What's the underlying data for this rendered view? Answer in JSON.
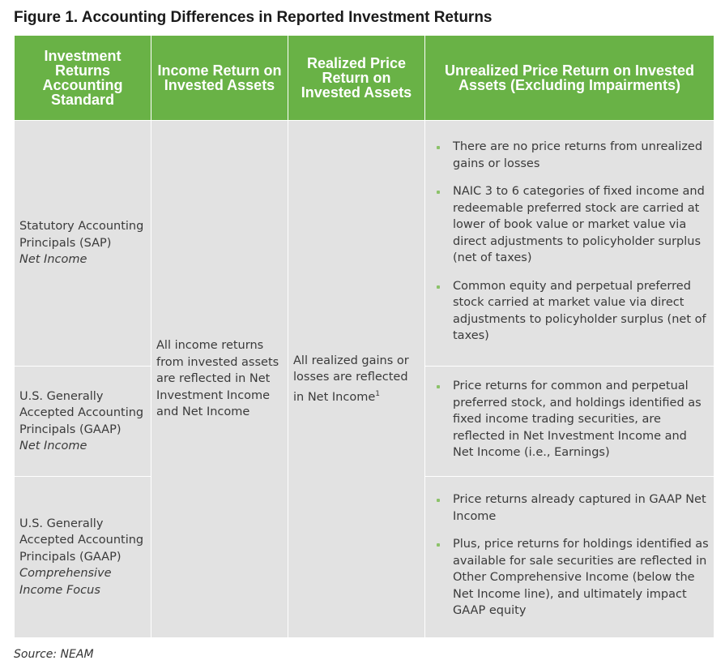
{
  "title": "Figure 1. Accounting Differences in Reported Investment Returns",
  "headers": [
    "Investment Returns Accounting Standard",
    "Income Return on Invested Assets",
    "Realized Price Return on Invested Assets",
    "Unrealized Price Return on Invested Assets (Excluding Impairments)"
  ],
  "income_return": "All income returns from invested assets are reflected in Net Investment Income and Net Income",
  "realized_return": "All realized gains or losses are reflected in Net Income",
  "realized_footnote": "1",
  "rows": [
    {
      "standard": "Statutory Accounting Principals (SAP)",
      "focus": "Net Income",
      "bullets": [
        "There are no price returns from unrealized gains or losses",
        "NAIC 3 to 6 categories of fixed income and redeemable preferred stock are carried at lower of book value or market value via direct adjustments to policyholder surplus (net of taxes)",
        "Common equity and perpetual preferred stock carried at market value via direct adjustments to policyholder surplus (net of taxes)"
      ]
    },
    {
      "standard": "U.S. Generally Accepted Accounting Principals (GAAP)",
      "focus": "Net Income",
      "bullets": [
        "Price returns for common and perpetual preferred stock, and holdings identified as fixed income trading securities, are reflected in Net Investment Income and Net Income (i.e., Earnings)"
      ]
    },
    {
      "standard": "U.S. Generally Accepted Accounting Principals (GAAP)",
      "focus": "Comprehensive Income Focus",
      "bullets": [
        "Price returns already captured in GAAP Net Income",
        "Plus, price returns for holdings identified as available for sale securities are reflected in Other Comprehensive Income (below the Net Income line), and ultimately impact GAAP equity"
      ]
    }
  ],
  "source": "Source: NEAM",
  "colors": {
    "header": "#69b246",
    "cell": "#e2e2e2",
    "bullet": "#8cc26a"
  }
}
